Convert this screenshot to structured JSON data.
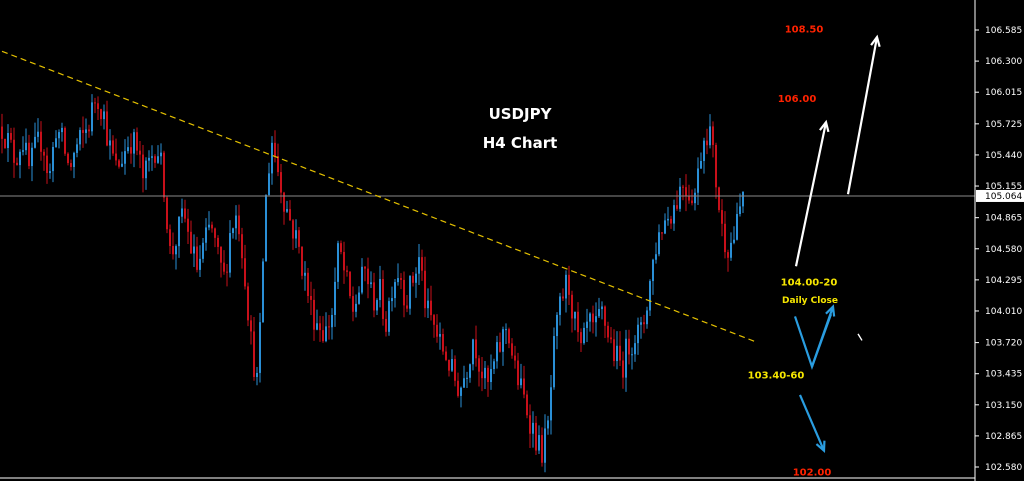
{
  "chart_data": {
    "type": "candlestick",
    "title": "USDJPY",
    "subtitle": "H4 Chart",
    "symbol": "USDJPY",
    "timeframe": "H4",
    "ylim": [
      102.44,
      106.78
    ],
    "yticks": [
      "106.585",
      "106.300",
      "106.015",
      "105.725",
      "105.440",
      "105.155",
      "104.865",
      "104.580",
      "104.295",
      "104.010",
      "103.720",
      "103.435",
      "103.150",
      "102.865",
      "102.580"
    ],
    "current_price": "105.064",
    "grid": false,
    "close_path": [
      105.7,
      105.55,
      105.4,
      105.6,
      105.3,
      105.5,
      105.6,
      105.2,
      105.7,
      105.55,
      105.3,
      105.5,
      105.6,
      105.75,
      106.0,
      105.85,
      105.5,
      105.3,
      105.45,
      105.6,
      105.5,
      105.2,
      105.4,
      105.55,
      105.2,
      104.5,
      104.7,
      104.9,
      104.6,
      104.4,
      104.6,
      104.8,
      104.5,
      104.3,
      104.8,
      104.9,
      104.4,
      103.7,
      103.3,
      104.9,
      105.6,
      105.3,
      105.0,
      104.8,
      104.6,
      104.3,
      104.0,
      103.9,
      103.8,
      104.0,
      104.6,
      104.3,
      104.0,
      104.2,
      104.4,
      104.1,
      104.2,
      103.9,
      104.3,
      104.4,
      104.1,
      104.3,
      104.5,
      104.0,
      103.9,
      103.7,
      103.6,
      103.4,
      103.3,
      103.5,
      103.8,
      103.5,
      103.3,
      103.5,
      103.7,
      103.9,
      103.5,
      103.3,
      103.1,
      102.9,
      102.7,
      102.9,
      103.7,
      104.1,
      104.3,
      103.9,
      103.6,
      103.9,
      103.8,
      104.0,
      103.8,
      103.6,
      103.5,
      103.7,
      103.8,
      103.8,
      104.2,
      104.6,
      104.8,
      104.9,
      105.0,
      105.2,
      105.1,
      105.1,
      105.6,
      105.7,
      105.2,
      104.7,
      104.6,
      104.75,
      105.1
    ],
    "trendline": {
      "label": "descending trendline",
      "color": "#e5c100",
      "points": [
        [
          0,
          106.39
        ],
        [
          119,
          103.73
        ]
      ]
    },
    "annotations": [
      {
        "text": "108.50",
        "color": "#ff2200",
        "price": 106.6
      },
      {
        "text": "106.00",
        "color": "#ff2200",
        "price": 105.96
      },
      {
        "text": "104.00-20",
        "color": "#f6e600",
        "price": 104.28
      },
      {
        "text": "Daily Close",
        "color": "#f6e600",
        "price": 104.12
      },
      {
        "text": "103.40-60",
        "color": "#f6e600",
        "price": 103.43
      },
      {
        "text": "102.00",
        "color": "#ff2200",
        "price": 102.54
      }
    ],
    "colors": {
      "up": "#2a8fd6",
      "down": "#c8101a",
      "bull_arrow": "#ffffff",
      "bear_arrow": "#2a9de0",
      "background": "#000000",
      "axis": "#ffffff"
    }
  }
}
